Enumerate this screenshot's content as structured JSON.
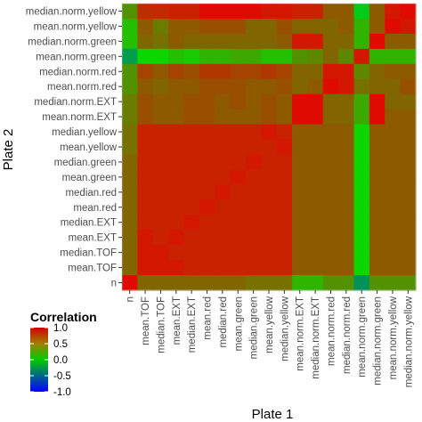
{
  "chart_data": {
    "type": "heatmap",
    "xlabel": "Plate 1",
    "ylabel": "Plate 2",
    "variables": [
      "n",
      "mean.TOF",
      "median.TOF",
      "mean.EXT",
      "median.EXT",
      "mean.red",
      "median.red",
      "mean.green",
      "median.green",
      "mean.yellow",
      "median.yellow",
      "mean.norm.EXT",
      "median.norm.EXT",
      "mean.norm.red",
      "median.norm.red",
      "mean.norm.green",
      "median.norm.green",
      "mean.norm.yellow",
      "median.norm.yellow"
    ],
    "x_categories": [
      "n",
      "mean.TOF",
      "median.TOF",
      "mean.EXT",
      "median.EXT",
      "mean.red",
      "median.red",
      "mean.green",
      "median.green",
      "mean.yellow",
      "median.yellow",
      "mean.norm.EXT",
      "median.norm.EXT",
      "mean.norm.red",
      "median.norm.red",
      "mean.norm.green",
      "median.norm.green",
      "mean.norm.yellow",
      "median.norm.yellow"
    ],
    "y_categories_top_to_bottom": [
      "median.norm.yellow",
      "mean.norm.yellow",
      "median.norm.green",
      "mean.norm.green",
      "median.norm.red",
      "mean.norm.red",
      "median.norm.EXT",
      "mean.norm.EXT",
      "median.yellow",
      "mean.yellow",
      "median.green",
      "mean.green",
      "median.red",
      "mean.red",
      "median.EXT",
      "mean.EXT",
      "median.TOF",
      "mean.TOF",
      "n"
    ],
    "values_rows_top_to_bottom": [
      [
        0.35,
        0.8,
        0.82,
        0.85,
        0.85,
        0.95,
        0.95,
        0.95,
        0.95,
        0.9,
        0.9,
        0.85,
        0.85,
        0.6,
        0.6,
        -0.1,
        0.6,
        0.9,
        0.95
      ],
      [
        0.15,
        0.6,
        0.45,
        0.6,
        0.6,
        0.65,
        0.65,
        0.65,
        0.55,
        0.55,
        0.65,
        0.55,
        0.55,
        0.55,
        0.6,
        0.2,
        0.6,
        0.95,
        0.9
      ],
      [
        0.15,
        0.55,
        0.5,
        0.6,
        0.55,
        0.55,
        0.55,
        0.55,
        0.55,
        0.55,
        0.6,
        0.9,
        0.9,
        0.55,
        0.55,
        0.2,
        0.95,
        0.6,
        0.6
      ],
      [
        -0.3,
        0.05,
        0.05,
        0.15,
        0.1,
        0.2,
        0.2,
        0.25,
        0.25,
        0.15,
        0.15,
        0.35,
        0.4,
        0.55,
        0.4,
        0.9,
        0.2,
        0.2,
        0.2
      ],
      [
        0.35,
        0.7,
        0.6,
        0.7,
        0.65,
        0.75,
        0.75,
        0.7,
        0.7,
        0.75,
        0.7,
        0.55,
        0.55,
        0.9,
        0.9,
        0.4,
        0.55,
        0.6,
        0.6
      ],
      [
        0.35,
        0.6,
        0.55,
        0.6,
        0.6,
        0.65,
        0.65,
        0.65,
        0.6,
        0.6,
        0.65,
        0.55,
        0.6,
        0.95,
        0.9,
        0.5,
        0.55,
        0.55,
        0.65
      ],
      [
        0.45,
        0.65,
        0.6,
        0.6,
        0.65,
        0.65,
        0.6,
        0.65,
        0.6,
        0.65,
        0.6,
        0.95,
        0.95,
        0.55,
        0.55,
        0.25,
        0.95,
        0.55,
        0.55
      ],
      [
        0.45,
        0.65,
        0.6,
        0.6,
        0.65,
        0.65,
        0.6,
        0.6,
        0.6,
        0.65,
        0.6,
        0.95,
        0.95,
        0.55,
        0.55,
        0.25,
        0.95,
        0.6,
        0.6
      ],
      [
        0.5,
        0.85,
        0.85,
        0.85,
        0.85,
        0.85,
        0.85,
        0.85,
        0.85,
        0.9,
        0.85,
        0.6,
        0.6,
        0.6,
        0.6,
        0.05,
        0.6,
        0.6,
        0.6
      ],
      [
        0.5,
        0.85,
        0.85,
        0.85,
        0.85,
        0.85,
        0.85,
        0.85,
        0.85,
        0.85,
        0.9,
        0.6,
        0.6,
        0.6,
        0.6,
        0.05,
        0.6,
        0.6,
        0.6
      ],
      [
        0.55,
        0.85,
        0.85,
        0.85,
        0.85,
        0.85,
        0.85,
        0.85,
        0.9,
        0.85,
        0.85,
        0.6,
        0.6,
        0.6,
        0.6,
        0.05,
        0.6,
        0.6,
        0.6
      ],
      [
        0.55,
        0.85,
        0.85,
        0.85,
        0.85,
        0.85,
        0.85,
        0.9,
        0.85,
        0.85,
        0.85,
        0.6,
        0.6,
        0.6,
        0.6,
        0.05,
        0.6,
        0.6,
        0.6
      ],
      [
        0.55,
        0.85,
        0.85,
        0.85,
        0.85,
        0.85,
        0.9,
        0.85,
        0.85,
        0.85,
        0.85,
        0.6,
        0.6,
        0.6,
        0.6,
        0.05,
        0.6,
        0.6,
        0.6
      ],
      [
        0.55,
        0.85,
        0.85,
        0.85,
        0.85,
        0.9,
        0.85,
        0.85,
        0.85,
        0.85,
        0.85,
        0.6,
        0.6,
        0.6,
        0.6,
        0.05,
        0.6,
        0.6,
        0.6
      ],
      [
        0.55,
        0.85,
        0.85,
        0.85,
        0.9,
        0.85,
        0.85,
        0.85,
        0.85,
        0.85,
        0.85,
        0.6,
        0.6,
        0.6,
        0.6,
        0.05,
        0.6,
        0.6,
        0.6
      ],
      [
        0.55,
        0.9,
        0.85,
        0.9,
        0.85,
        0.85,
        0.85,
        0.85,
        0.85,
        0.85,
        0.85,
        0.6,
        0.6,
        0.6,
        0.6,
        0.05,
        0.6,
        0.6,
        0.6
      ],
      [
        0.55,
        0.9,
        0.9,
        0.85,
        0.85,
        0.85,
        0.85,
        0.85,
        0.85,
        0.85,
        0.85,
        0.6,
        0.6,
        0.6,
        0.6,
        0.05,
        0.6,
        0.6,
        0.6
      ],
      [
        0.55,
        0.9,
        0.9,
        0.9,
        0.85,
        0.85,
        0.85,
        0.85,
        0.85,
        0.85,
        0.85,
        0.6,
        0.6,
        0.6,
        0.6,
        0.05,
        0.6,
        0.6,
        0.6
      ],
      [
        0.95,
        0.55,
        0.55,
        0.55,
        0.55,
        0.55,
        0.55,
        0.55,
        0.5,
        0.5,
        0.5,
        0.2,
        0.2,
        0.35,
        0.35,
        -0.35,
        0.35,
        0.35,
        0.35
      ]
    ],
    "legend": {
      "title": "Correlation",
      "ticks": [
        "1.0",
        "0.5",
        "0.0",
        "-0.5",
        "-1.0"
      ],
      "tick_values": [
        1.0,
        0.5,
        0.0,
        -0.5,
        -1.0
      ],
      "range": [
        -1,
        1
      ],
      "placement": "bottom-left"
    },
    "colors": {
      "low": "#0000ff",
      "mid": "#00ff00",
      "high": "#ff0000",
      "panel_border": "#cccccc",
      "tick_text": "#4d4d4d"
    }
  }
}
